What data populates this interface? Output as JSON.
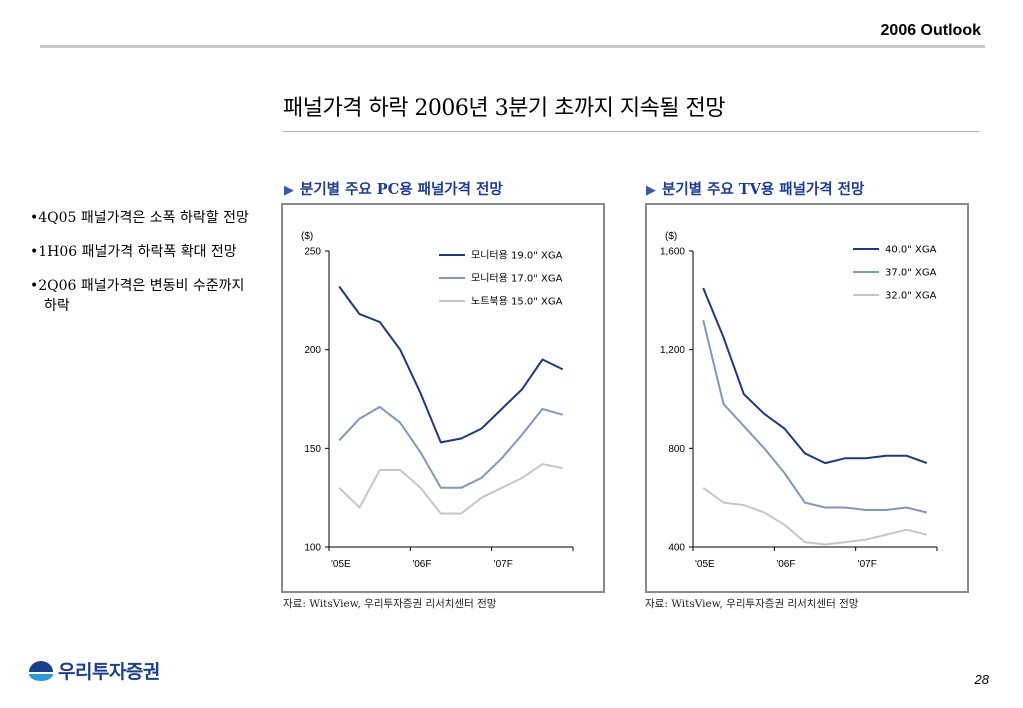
{
  "header": {
    "title": "2006 Outlook"
  },
  "page_title": "패널가격 하락 2006년 3분기 초까지 지속될 전망",
  "bullets": [
    "4Q05 패널가격은 소폭 하락할 전망",
    "1H06 패널가격 하락폭 확대 전망",
    "2Q06 패널가격은 변동비 수준까지 하락"
  ],
  "colors": {
    "dark": "#1f3a7a",
    "medium": "#8296c2",
    "light": "#c6c6c6",
    "frame": "#8a8a8a"
  },
  "charts": [
    {
      "title_marker": "▶",
      "title": "분기별 주요 PC용 패널가격 전망",
      "source": "자료: WitsView, 우리투자증권 리서치센터 전망"
    },
    {
      "title_marker": "▶",
      "title": "분기별 주요 TV용 패널가격 전망",
      "source": "자료: WitsView, 우리투자증권 리서치센터 전망"
    }
  ],
  "chart_data": [
    {
      "type": "line",
      "unit_label": "($)",
      "ylim": [
        100,
        250
      ],
      "yticks": [
        100,
        150,
        200,
        250
      ],
      "ytick_labels": [
        "100",
        "150",
        "200",
        "250"
      ],
      "categories": [
        "'05E",
        "",
        "",
        "",
        "'06F",
        "",
        "",
        "",
        "'07F",
        "",
        "",
        ""
      ],
      "xtick_labels": [
        "'05E",
        "'06F",
        "'07F"
      ],
      "legend_position": "top-right",
      "series": [
        {
          "name": "모니터용 19.0\" XGA",
          "color": "#1f3a7a",
          "values": [
            232,
            218,
            214,
            200,
            178,
            153,
            155,
            160,
            170,
            180,
            195,
            190
          ]
        },
        {
          "name": "모니터용 17.0\" XGA",
          "color": "#8296c2",
          "values": [
            154,
            165,
            171,
            163,
            148,
            130,
            130,
            135,
            145,
            157,
            170,
            167
          ]
        },
        {
          "name": "노트북용 15.0\" XGA",
          "color": "#c6c6c6",
          "values": [
            130,
            120,
            139,
            139,
            130,
            117,
            117,
            125,
            130,
            135,
            142,
            140
          ]
        }
      ]
    },
    {
      "type": "line",
      "unit_label": "($)",
      "ylim": [
        400,
        1600
      ],
      "yticks": [
        400,
        800,
        1200,
        1600
      ],
      "ytick_labels": [
        "400",
        "800",
        "1,200",
        "1,600"
      ],
      "categories": [
        "'05E",
        "",
        "",
        "",
        "'06F",
        "",
        "",
        "",
        "'07F",
        "",
        "",
        ""
      ],
      "xtick_labels": [
        "'05E",
        "'06F",
        "'07F"
      ],
      "legend_position": "top-right",
      "series": [
        {
          "name": "40.0\" XGA",
          "color": "#1f3a7a",
          "values": [
            1450,
            1250,
            1020,
            940,
            880,
            780,
            740,
            760,
            760,
            770,
            770,
            740
          ]
        },
        {
          "name": "37.0\" XGA",
          "color": "#8296c2",
          "values": [
            1320,
            980,
            890,
            800,
            700,
            580,
            560,
            560,
            550,
            550,
            560,
            540
          ]
        },
        {
          "name": "32.0\" XGA",
          "color": "#c6c6c6",
          "values": [
            640,
            580,
            570,
            540,
            490,
            420,
            410,
            420,
            430,
            450,
            470,
            450
          ]
        }
      ]
    }
  ],
  "logo": {
    "name": "우리투자증권"
  },
  "page_number": "28"
}
